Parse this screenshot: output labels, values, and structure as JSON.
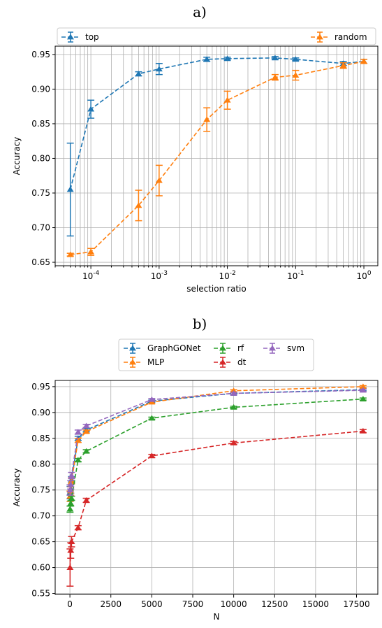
{
  "chart_data": [
    {
      "type": "line",
      "panel_label": "a)",
      "xlabel": "selection ratio",
      "ylabel": "Accuracy",
      "xscale": "log",
      "xlim": [
        3e-05,
        1.6
      ],
      "ylim": [
        0.645,
        0.962
      ],
      "grid": "major and minor on x, major on y",
      "legend": "top, expanded across",
      "x_tick_labels": [
        "10^-4",
        "10^-3",
        "10^-2",
        "10^-1",
        "10^0"
      ],
      "y_tick_labels": [
        "0.65",
        "0.70",
        "0.75",
        "0.80",
        "0.85",
        "0.90",
        "0.95"
      ],
      "x": [
        5e-05,
        0.0001,
        0.0005,
        0.001,
        0.005,
        0.01,
        0.05,
        0.1,
        0.5,
        1
      ],
      "series": [
        {
          "name": "top",
          "color": "#1f77b4",
          "values": [
            0.755,
            0.871,
            0.922,
            0.929,
            0.943,
            0.944,
            0.945,
            0.943,
            0.937,
            0.94
          ],
          "errors": [
            0.067,
            0.013,
            0.003,
            0.008,
            0.003,
            0.002,
            0.002,
            0.002,
            0.003,
            0.003
          ]
        },
        {
          "name": "random",
          "color": "#ff7f0e",
          "values": [
            0.661,
            0.665,
            0.732,
            0.768,
            0.856,
            0.884,
            0.917,
            0.92,
            0.934,
            0.94
          ],
          "errors": [
            0.002,
            0.005,
            0.022,
            0.022,
            0.017,
            0.013,
            0.004,
            0.007,
            0.004,
            0.003
          ]
        }
      ]
    },
    {
      "type": "line",
      "panel_label": "b)",
      "xlabel": "N",
      "ylabel": "Accuracy",
      "xlim": [
        -900,
        18800
      ],
      "ylim": [
        0.548,
        0.962
      ],
      "grid": "major on x and y",
      "legend": "top center, 3 columns",
      "x_tick_labels": [
        "0",
        "2500",
        "5000",
        "7500",
        "10000",
        "12500",
        "15000",
        "17500"
      ],
      "y_tick_labels": [
        "0.55",
        "0.60",
        "0.65",
        "0.70",
        "0.75",
        "0.80",
        "0.85",
        "0.90",
        "0.95"
      ],
      "x": [
        10,
        50,
        100,
        500,
        1000,
        5000,
        10000,
        17900
      ],
      "series": [
        {
          "name": "GraphGONet",
          "color": "#1f77b4",
          "values": [
            0.745,
            0.752,
            0.77,
            0.85,
            0.866,
            0.922,
            0.937,
            0.944
          ],
          "errors": [
            0.012,
            0.008,
            0.006,
            0.004,
            0.003,
            0.002,
            0.002,
            0.002
          ]
        },
        {
          "name": "MLP",
          "color": "#ff7f0e",
          "values": [
            0.738,
            0.748,
            0.768,
            0.846,
            0.863,
            0.92,
            0.942,
            0.95
          ],
          "errors": [
            0.01,
            0.008,
            0.006,
            0.004,
            0.003,
            0.002,
            0.002,
            0.002
          ]
        },
        {
          "name": "rf",
          "color": "#2ca02c",
          "values": [
            0.713,
            0.724,
            0.734,
            0.808,
            0.825,
            0.889,
            0.91,
            0.926
          ],
          "errors": [
            0.006,
            0.005,
            0.004,
            0.003,
            0.003,
            0.002,
            0.002,
            0.002
          ]
        },
        {
          "name": "dt",
          "color": "#d62728",
          "values": [
            0.6,
            0.633,
            0.65,
            0.677,
            0.73,
            0.816,
            0.841,
            0.864
          ],
          "errors": [
            0.036,
            0.015,
            0.01,
            0.004,
            0.004,
            0.003,
            0.003,
            0.003
          ]
        },
        {
          "name": "svm",
          "color": "#9467bd",
          "values": [
            0.75,
            0.76,
            0.778,
            0.862,
            0.874,
            0.925,
            0.937,
            0.943
          ],
          "errors": [
            0.01,
            0.008,
            0.006,
            0.004,
            0.003,
            0.002,
            0.002,
            0.002
          ]
        }
      ]
    }
  ]
}
